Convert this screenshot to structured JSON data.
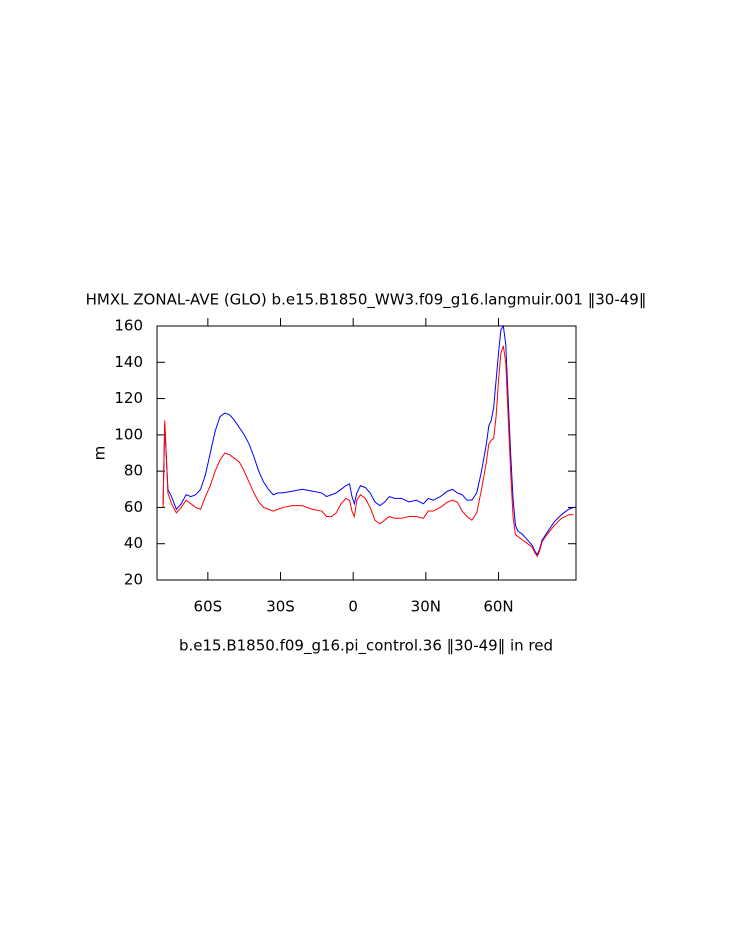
{
  "chart_data": {
    "type": "line",
    "title": "HMXL ZONAL-AVE (GLO) b.e15.B1850_WW3.f09_g16.langmuir.001 ‖30-49‖",
    "subtitle": "b.e15.B1850.f09_g16.pi_control.36 ‖30-49‖ in red",
    "y_label": "m",
    "x": [
      -78.5,
      -77.8,
      -76.5,
      -75,
      -73,
      -71,
      -69,
      -67,
      -65,
      -63,
      -61,
      -59,
      -57,
      -55,
      -53,
      -51,
      -49,
      -47,
      -45,
      -43,
      -41,
      -39,
      -37,
      -35,
      -33,
      -31,
      -29,
      -25,
      -21,
      -17,
      -13,
      -11,
      -9,
      -7,
      -5,
      -3,
      -1.5,
      -0.5,
      0.5,
      1.5,
      3,
      5,
      7,
      9,
      11,
      13,
      15,
      17,
      20,
      23,
      26,
      29,
      31,
      33,
      36,
      39,
      41,
      43,
      45,
      47,
      49,
      51,
      53,
      55,
      56,
      57,
      58,
      59,
      60,
      61,
      62,
      63,
      64,
      65,
      66,
      67,
      68,
      70,
      72,
      74,
      75,
      76,
      77,
      78,
      80,
      83,
      86,
      89,
      91
    ],
    "series": [
      {
        "name": "langmuir",
        "color": "#0000ff",
        "values": [
          62,
          106,
          70,
          66,
          59,
          62,
          67,
          66,
          67,
          70,
          78,
          90,
          102,
          110,
          112,
          111,
          108,
          104,
          100,
          95,
          88,
          80,
          74,
          70,
          67,
          68,
          68,
          69,
          70,
          69,
          68,
          66,
          67,
          68,
          70,
          72,
          73,
          66,
          62,
          68,
          72,
          71,
          68,
          63,
          61,
          63,
          66,
          65,
          65,
          63,
          64,
          62,
          65,
          64,
          66,
          69,
          70,
          68,
          67,
          64,
          64,
          68,
          80,
          95,
          105,
          108,
          115,
          130,
          145,
          158,
          160,
          150,
          120,
          90,
          65,
          50,
          47,
          45,
          42,
          39,
          36,
          34,
          37,
          42,
          46,
          52,
          56,
          59,
          60
        ]
      },
      {
        "name": "pi_control",
        "color": "#ff0000",
        "values": [
          60,
          108,
          68,
          62,
          57,
          60,
          64,
          62,
          60,
          59,
          66,
          72,
          80,
          86,
          90,
          89,
          87,
          85,
          80,
          74,
          68,
          63,
          60,
          59,
          58,
          59,
          60,
          61,
          61,
          59,
          58,
          55,
          55,
          57,
          62,
          65,
          64,
          58,
          55,
          64,
          67,
          65,
          60,
          53,
          51,
          53,
          55,
          54,
          54,
          55,
          55,
          54,
          58,
          58,
          60,
          63,
          64,
          63,
          58,
          55,
          53,
          57,
          70,
          85,
          95,
          97,
          98,
          110,
          130,
          145,
          149,
          140,
          110,
          80,
          55,
          45,
          44,
          42,
          40,
          38,
          35,
          33,
          36,
          41,
          45,
          50,
          54,
          56,
          56
        ]
      }
    ],
    "xlim": [
      -81,
      92
    ],
    "ylim": [
      20,
      160
    ],
    "xticks": [
      {
        "value": -60,
        "label": "60S"
      },
      {
        "value": -30,
        "label": "30S"
      },
      0,
      {
        "value": 30,
        "label": "30N"
      },
      {
        "value": 60,
        "label": "60N"
      }
    ],
    "yticks": [
      20,
      40,
      60,
      80,
      100,
      120,
      140,
      160
    ]
  }
}
